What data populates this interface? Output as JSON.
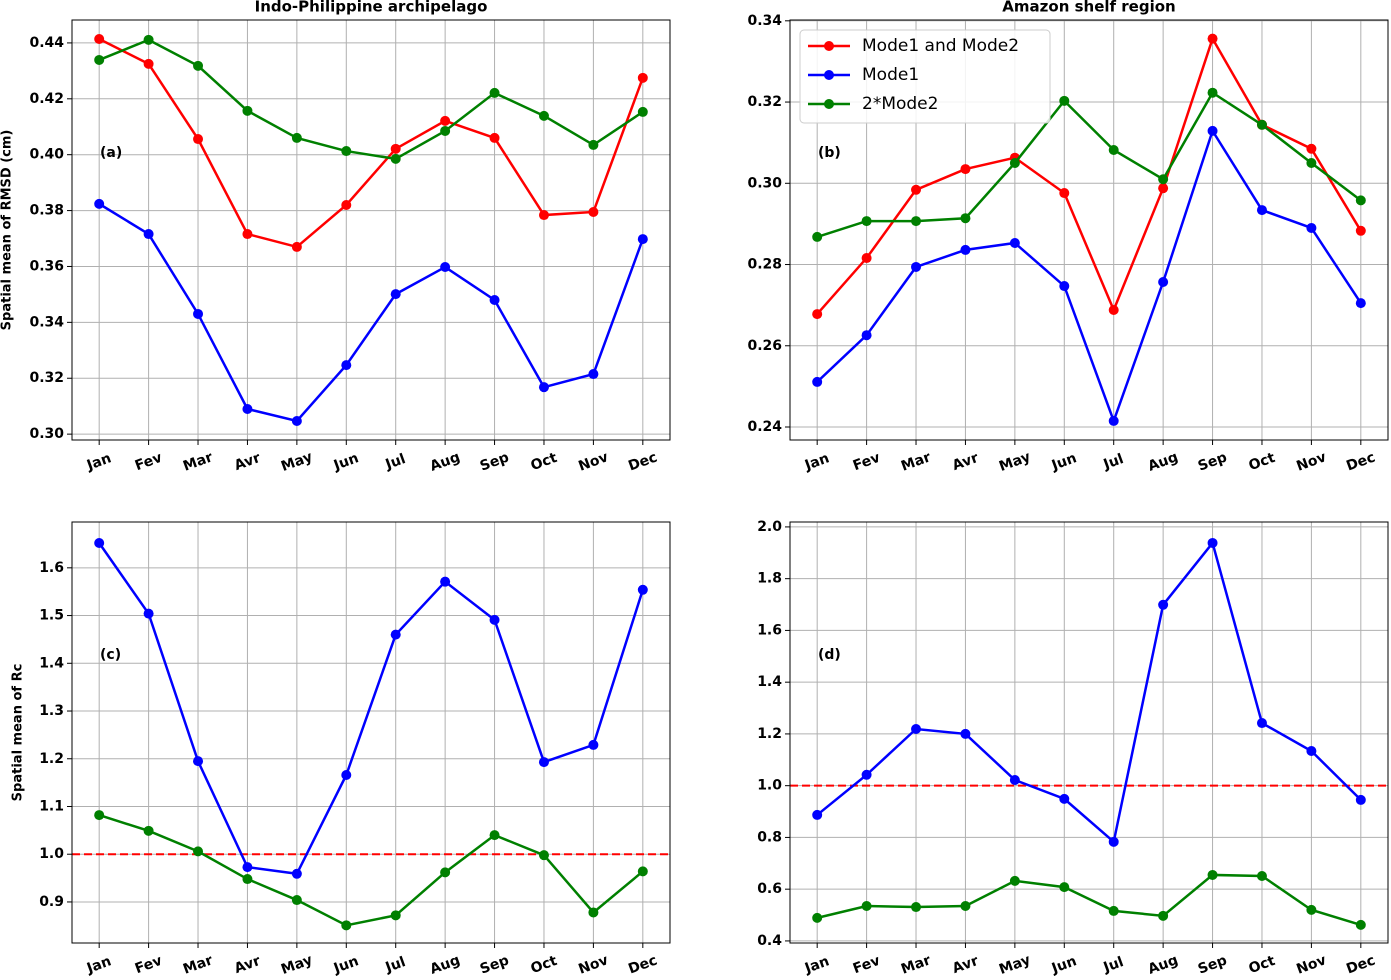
{
  "chart_data": [
    {
      "type": "line",
      "title": "Indo-Philippine archipelago",
      "y_label": "Spatial mean of RMSD (cm)",
      "annotation": "(a)",
      "categories": [
        "Jan",
        "Fev",
        "Mar",
        "Avr",
        "May",
        "Jun",
        "Jul",
        "Aug",
        "Sep",
        "Oct",
        "Nov",
        "Dec"
      ],
      "series": [
        {
          "color": "#ff0000",
          "values": [
            0.4414,
            0.4325,
            0.4056,
            0.3716,
            0.367,
            0.382,
            0.4021,
            0.4121,
            0.406,
            0.3784,
            0.3795,
            0.4275
          ]
        },
        {
          "color": "#0000ff",
          "values": [
            0.3824,
            0.3716,
            0.343,
            0.309,
            0.3047,
            0.3247,
            0.3501,
            0.3598,
            0.348,
            0.3168,
            0.3215,
            0.3698
          ]
        },
        {
          "color": "#008000",
          "values": [
            0.4339,
            0.4411,
            0.4318,
            0.4157,
            0.406,
            0.4013,
            0.3985,
            0.4085,
            0.4221,
            0.4139,
            0.4035,
            0.4153
          ]
        }
      ],
      "ylim": [
        0.2979,
        0.4482
      ],
      "yticks": [
        {
          "value": 0.3,
          "label": "0.30"
        },
        0.32,
        0.34,
        0.36,
        0.38,
        {
          "value": 0.4,
          "label": "0.40"
        },
        0.42,
        0.44
      ],
      "grid": true
    },
    {
      "type": "line",
      "title": "Amazon shelf region",
      "annotation": "(b)",
      "categories": [
        "Jan",
        "Fev",
        "Mar",
        "Avr",
        "May",
        "Jun",
        "Jul",
        "Aug",
        "Sep",
        "Oct",
        "Nov",
        "Dec"
      ],
      "series": [
        {
          "name": "Mode1 and Mode2",
          "color": "#ff0000",
          "values": [
            0.2678,
            0.2816,
            0.2984,
            0.3035,
            0.3063,
            0.2976,
            0.2688,
            0.2988,
            0.3356,
            0.3144,
            0.3085,
            0.2883
          ]
        },
        {
          "name": "Mode1",
          "color": "#0000ff",
          "values": [
            0.2511,
            0.2626,
            0.2794,
            0.2836,
            0.2853,
            0.2747,
            0.2415,
            0.2757,
            0.3129,
            0.2934,
            0.289,
            0.2705
          ]
        },
        {
          "name": "2*Mode2",
          "color": "#008000",
          "values": [
            0.2868,
            0.2907,
            0.2907,
            0.2914,
            0.305,
            0.3203,
            0.3082,
            0.301,
            0.3223,
            0.3144,
            0.305,
            0.2958
          ]
        }
      ],
      "ylim": [
        0.2368,
        0.3402
      ],
      "yticks": [
        0.24,
        0.26,
        0.28,
        {
          "value": 0.3,
          "label": "0.30"
        },
        0.32,
        0.34
      ],
      "grid": true,
      "legend": "upper left"
    },
    {
      "type": "line",
      "y_label": "Spatial mean of Rc",
      "annotation": "(c)",
      "categories": [
        "Jan",
        "Fev",
        "Mar",
        "Avr",
        "May",
        "Jun",
        "Jul",
        "Aug",
        "Sep",
        "Oct",
        "Nov",
        "Dec"
      ],
      "series": [
        {
          "color": "#0000ff",
          "values": [
            1.652,
            1.504,
            1.195,
            0.973,
            0.959,
            1.166,
            1.46,
            1.571,
            1.491,
            1.193,
            1.229,
            1.554
          ]
        },
        {
          "color": "#008000",
          "values": [
            1.082,
            1.049,
            1.006,
            0.948,
            0.904,
            0.851,
            0.872,
            0.962,
            1.04,
            0.998,
            0.878,
            0.964
          ]
        }
      ],
      "ylim": [
        0.814,
        1.696
      ],
      "yticks": [
        0.9,
        {
          "value": 1,
          "label": "1.0"
        },
        1.1,
        1.2,
        1.3,
        1.4,
        1.5,
        1.6
      ],
      "grid": true,
      "hline": 1,
      "hline_color": "#ff0000"
    },
    {
      "type": "line",
      "annotation": "(d)",
      "categories": [
        "Jan",
        "Fev",
        "Mar",
        "Avr",
        "May",
        "Jun",
        "Jul",
        "Aug",
        "Sep",
        "Oct",
        "Nov",
        "Dec"
      ],
      "series": [
        {
          "color": "#0000ff",
          "values": [
            0.887,
            1.042,
            1.219,
            1.2,
            1.022,
            0.949,
            0.783,
            1.699,
            1.938,
            1.242,
            1.134,
            0.945
          ]
        },
        {
          "color": "#008000",
          "values": [
            0.489,
            0.535,
            0.531,
            0.535,
            0.632,
            0.608,
            0.516,
            0.497,
            0.655,
            0.651,
            0.52,
            0.462
          ]
        }
      ],
      "ylim": [
        0.392,
        2.019
      ],
      "yticks": [
        0.4,
        0.6,
        0.8,
        {
          "value": 1,
          "label": "1.0"
        },
        1.2,
        1.4,
        1.6,
        1.8,
        {
          "value": 2,
          "label": "2.0"
        }
      ],
      "grid": true,
      "hline": 1,
      "hline_color": "#ff0000"
    }
  ]
}
